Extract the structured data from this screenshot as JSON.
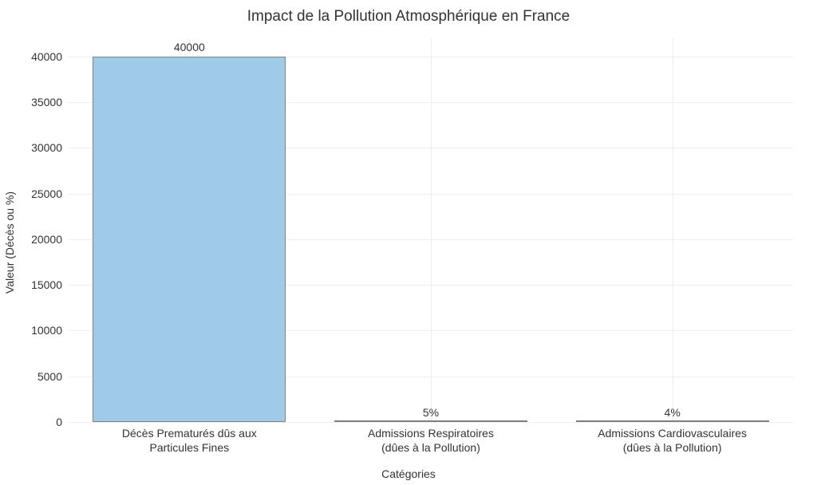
{
  "chart": {
    "type": "bar",
    "title": "Impact de la Pollution Atmosphérique en France",
    "title_fontsize": 19,
    "title_color": "#333333",
    "xlabel": "Catégories",
    "ylabel": "Valeur (Décès ou %)",
    "label_fontsize": 14,
    "label_color": "#333333",
    "background_color": "#ffffff",
    "grid_color": "#eeeeee",
    "spine_color": "#cccccc",
    "categories": [
      "Décès Prematurés dûs aux\nParticules Fines",
      "Admissions Respiratoires\n(dûes à la Pollution)",
      "Admissions Cardiovasculaires\n(dûes à la Pollution)"
    ],
    "values": [
      40000,
      5,
      4
    ],
    "value_labels": [
      "40000",
      "5%",
      "4%"
    ],
    "bar_colors": [
      "#a0cbe8",
      "#a0cbe8",
      "#a0cbe8"
    ],
    "bar_border_color": "#808080",
    "bar_border_width": 1.2,
    "bar_width_rel": 0.8,
    "ylim": [
      0,
      42000
    ],
    "yticks": [
      0,
      5000,
      10000,
      15000,
      20000,
      25000,
      30000,
      35000,
      40000
    ],
    "tick_fontsize": 14,
    "value_label_fontsize": 14,
    "value_label_color": "#333333",
    "grid_at_category_centers": true
  }
}
